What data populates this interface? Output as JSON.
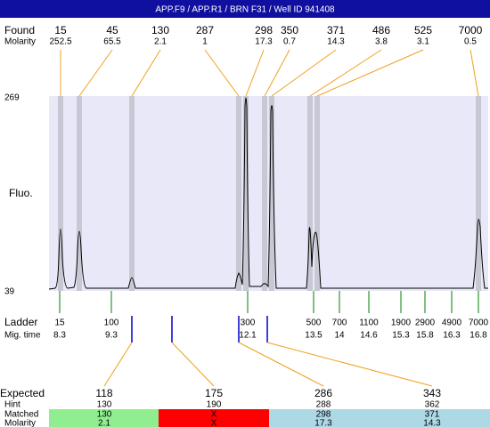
{
  "header": {
    "title": "APP.F9 / APP.R1 / BRN F31 / Well ID 941408"
  },
  "found": {
    "label": "Found",
    "sizes": [
      15,
      45,
      130,
      287,
      298,
      350,
      371,
      486,
      525,
      7000
    ],
    "molarity_label": "Molarity",
    "molarities": [
      252.5,
      65.5,
      2.1,
      1,
      17.3,
      0.7,
      14.3,
      3.8,
      3.1,
      0.5
    ]
  },
  "axis": {
    "label": "Fluo.",
    "max": 269,
    "min": 39
  },
  "ladder": {
    "label": "Ladder",
    "sizes": [
      15,
      100,
      300,
      500,
      700,
      1100,
      1900,
      2900,
      4900,
      7000
    ],
    "mig_time_label": "Mig. time",
    "mig_times": [
      8.3,
      9.3,
      12.1,
      13.5,
      14,
      14.6,
      15.3,
      15.8,
      16.3,
      16.8
    ]
  },
  "expected": {
    "labels": [
      "Expected",
      "Hint",
      "Matched",
      "Molarity"
    ],
    "columns": [
      {
        "expected": 118,
        "hint": 130,
        "matched": 130,
        "molarity": 2.1
      },
      {
        "expected": 175,
        "hint": 190,
        "matched": "X",
        "molarity": "X"
      },
      {
        "expected": 286,
        "hint": 288,
        "matched": 298,
        "molarity": 17.3
      },
      {
        "expected": 343,
        "hint": 362,
        "matched": 371,
        "molarity": 14.3
      }
    ]
  }
}
